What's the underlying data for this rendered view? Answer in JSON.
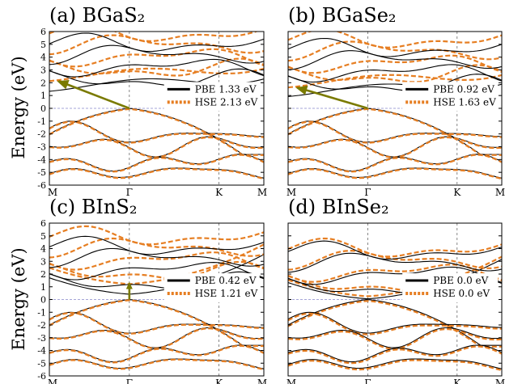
{
  "figure": {
    "ylabel": "Energy (eV)",
    "colors": {
      "pbe": "#000000",
      "hse": "#e67e22",
      "arrow": "#7a7a00",
      "fermi": "#8888cc",
      "kline": "#555555"
    }
  },
  "chart_data": [
    {
      "type": "line",
      "title": "(a) BGaS₂",
      "ylabel": "Energy (eV)",
      "ylim": [
        -6,
        6
      ],
      "yticks": [
        -6,
        -5,
        -4,
        -3,
        -2,
        -1,
        0,
        1,
        2,
        3,
        4,
        5,
        6
      ],
      "xticks": [
        "M",
        "Γ",
        "K",
        "M"
      ],
      "legend": [
        "PBE 1.33 eV",
        "HSE 2.13 eV"
      ],
      "legend_position": "center-right",
      "gap": {
        "pbe": 1.33,
        "hse": 2.13,
        "type": "indirect",
        "vbm_k": "Γ",
        "cbm_k": "M"
      }
    },
    {
      "type": "line",
      "title": "(b) BGaSe₂",
      "ylabel": "",
      "ylim": [
        -6,
        6
      ],
      "yticks": [
        -6,
        -5,
        -4,
        -3,
        -2,
        -1,
        0,
        1,
        2,
        3,
        4,
        5,
        6
      ],
      "xticks": [
        "M",
        "Γ",
        "K",
        "M"
      ],
      "legend": [
        "PBE  0.92 eV",
        "HSE 1.63 eV"
      ],
      "legend_position": "center-right",
      "gap": {
        "pbe": 0.92,
        "hse": 1.63,
        "type": "indirect",
        "vbm_k": "Γ",
        "cbm_k": "M"
      }
    },
    {
      "type": "line",
      "title": "(c) BInS₂",
      "ylabel": "Energy (eV)",
      "ylim": [
        -6,
        6
      ],
      "yticks": [
        -6,
        -5,
        -4,
        -3,
        -2,
        -1,
        0,
        1,
        2,
        3,
        4,
        5,
        6
      ],
      "xticks": [
        "M",
        "Γ",
        "K",
        "M"
      ],
      "legend": [
        "PBE 0.42 eV",
        "HSE 1.21 eV"
      ],
      "legend_position": "center-right",
      "gap": {
        "pbe": 0.42,
        "hse": 1.21,
        "type": "direct",
        "vbm_k": "Γ",
        "cbm_k": "Γ"
      }
    },
    {
      "type": "line",
      "title": "(d) BInSe₂",
      "ylabel": "",
      "ylim": [
        -6,
        6
      ],
      "yticks": [
        -6,
        -5,
        -4,
        -3,
        -2,
        -1,
        0,
        1,
        2,
        3,
        4,
        5,
        6
      ],
      "xticks": [
        "M",
        "Γ",
        "K",
        "M"
      ],
      "legend": [
        "PBE 0.0 eV",
        "HSE 0.0 eV"
      ],
      "legend_position": "center-right",
      "gap": {
        "pbe": 0.0,
        "hse": 0.0,
        "type": "none",
        "vbm_k": "Γ",
        "cbm_k": "Γ"
      }
    }
  ]
}
